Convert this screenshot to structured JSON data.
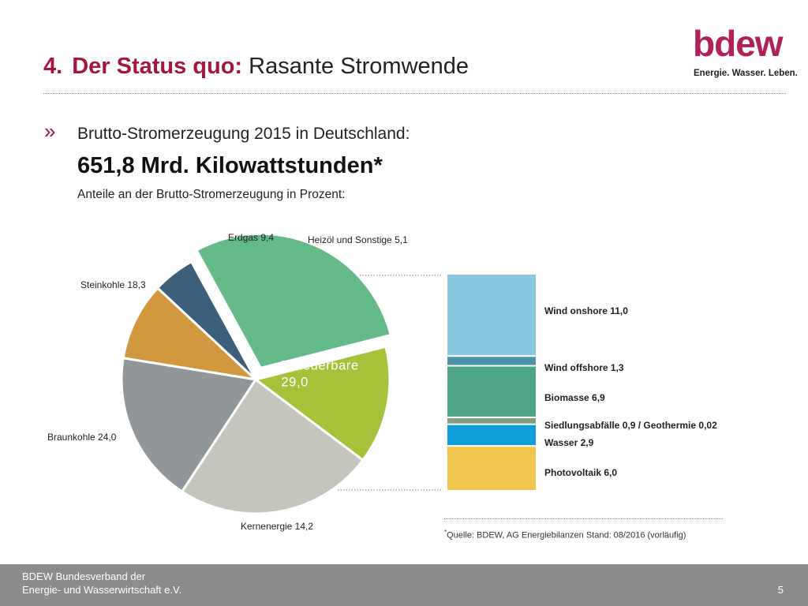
{
  "header": {
    "number": "4.",
    "title_accent": "Der Status quo:",
    "title_rest": "Rasante Stromwende"
  },
  "logo": {
    "wordmark": "bdew",
    "tagline": "Energie. Wasser. Leben."
  },
  "content": {
    "bullet_mark": "»",
    "bullet_text": "Brutto-Stromerzeugung 2015 in Deutschland:",
    "headline": "651,8 Mrd. Kilowattstunden*",
    "subhead": "Anteile an der Brutto-Stromerzeugung in Prozent:"
  },
  "chart_data": {
    "type": "pie",
    "title": "",
    "unit": "%",
    "slices": [
      {
        "label": "Erdgas",
        "value": 9.4,
        "display": "Erdgas 9,4",
        "color": "#d1983f"
      },
      {
        "label": "Heizöl und Sonstige",
        "value": 5.1,
        "display": "Heizöl und Sonstige 5,1",
        "color": "#3e5f79"
      },
      {
        "label": "Erneuerbare",
        "value": 29.0,
        "display_line1": "Erneuerbare",
        "display_line2": "29,0",
        "color": "#63ba88",
        "exploded": true
      },
      {
        "label": "Kernenergie",
        "value": 14.2,
        "display": "Kernenergie 14,2",
        "color": "#a5c23a"
      },
      {
        "label": "Braunkohle",
        "value": 24.0,
        "display": "Braunkohle 24,0",
        "color": "#c5c5bd"
      },
      {
        "label": "Steinkohle",
        "value": 18.3,
        "display": "Steinkohle 18,3",
        "color": "#919798"
      }
    ],
    "breakdown": {
      "type": "stacked-bar",
      "of": "Erneuerbare",
      "segments": [
        {
          "label": "Wind onshore",
          "value": 11.0,
          "display": "Wind onshore 11,0",
          "color": "#8dc8e3"
        },
        {
          "label": "Wind offshore",
          "value": 1.3,
          "display": "Wind offshore 1,3",
          "color": "#4e92aa"
        },
        {
          "label": "Biomasse",
          "value": 6.9,
          "display": "Biomasse 6,9",
          "color": "#4fa686"
        },
        {
          "label": "Siedlungsabfälle / Geothermie",
          "value": 0.92,
          "display": "Siedlungsabfälle 0,9 / Geothermie 0,02",
          "color": "#7f9f80"
        },
        {
          "label": "Wasser",
          "value": 2.9,
          "display": "Wasser 2,9",
          "color": "#0f9fd8"
        },
        {
          "label": "Photovoltaik",
          "value": 6.0,
          "display": "Photovoltaik 6,0",
          "color": "#f1c64f"
        }
      ]
    }
  },
  "source": {
    "mark": "*",
    "text": "Quelle: BDEW, AG Energiebilanzen Stand: 08/2016 (vorläufig)"
  },
  "footer": {
    "line1": "BDEW Bundesverband der",
    "line2": "Energie- und Wasserwirtschaft e.V.",
    "page": "5"
  }
}
